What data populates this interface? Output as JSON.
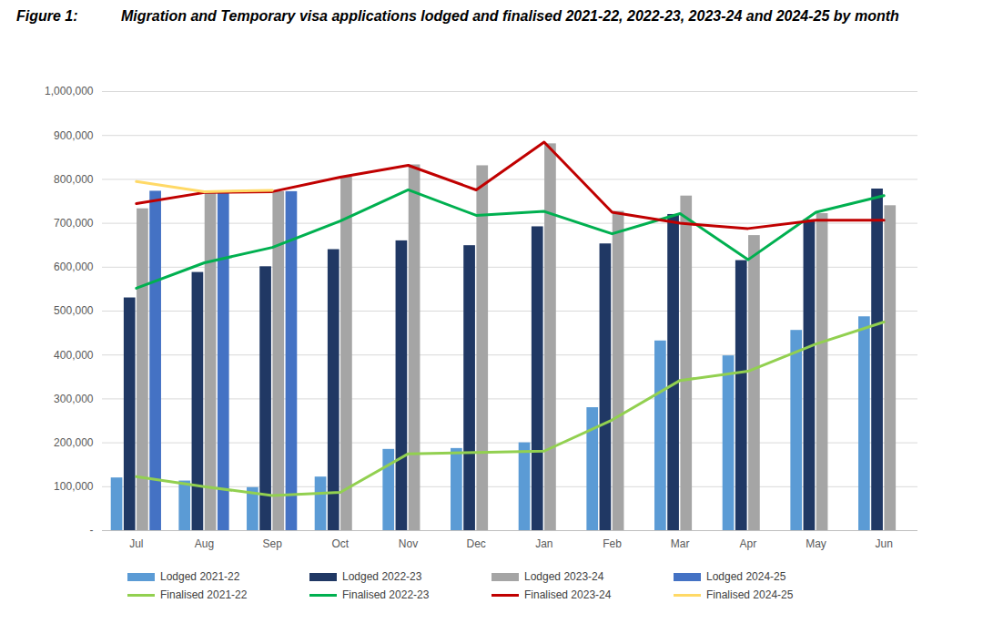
{
  "chart_data": {
    "type": "bar",
    "title": "Figure 1: Migration and Temporary visa applications lodged and finalised 2021-22, 2022-23, 2023-24 and 2024-25 by month",
    "categories": [
      "Jul",
      "Aug",
      "Sep",
      "Oct",
      "Nov",
      "Dec",
      "Jan",
      "Feb",
      "Mar",
      "Apr",
      "May",
      "Jun"
    ],
    "ylim": [
      0,
      1000000
    ],
    "yticks": [
      {
        "value": 0,
        "label": "-"
      },
      {
        "value": 100000,
        "label": "100,000"
      },
      {
        "value": 200000,
        "label": "200,000"
      },
      {
        "value": 300000,
        "label": "300,000"
      },
      {
        "value": 400000,
        "label": "400,000"
      },
      {
        "value": 500000,
        "label": "500,000"
      },
      {
        "value": 600000,
        "label": "600,000"
      },
      {
        "value": 700000,
        "label": "700,000"
      },
      {
        "value": 800000,
        "label": "800,000"
      },
      {
        "value": 900000,
        "label": "900,000"
      },
      {
        "value": 1000000,
        "label": "1,000,000"
      }
    ],
    "grid": true,
    "legend": "bottom",
    "series": [
      {
        "name": "Lodged 2021-22",
        "type": "bar",
        "color": "#5b9bd5",
        "values": [
          120000,
          113000,
          98000,
          122000,
          185000,
          187000,
          200000,
          280000,
          432000,
          398000,
          456000,
          487000
        ]
      },
      {
        "name": "Lodged 2022-23",
        "type": "bar",
        "color": "#203864",
        "values": [
          530000,
          588000,
          601000,
          640000,
          660000,
          649000,
          692000,
          653000,
          720000,
          615000,
          708000,
          778000
        ]
      },
      {
        "name": "Lodged 2023-24",
        "type": "bar",
        "color": "#a5a5a5",
        "values": [
          733000,
          770000,
          772000,
          805000,
          833000,
          831000,
          881000,
          727000,
          762000,
          672000,
          722000,
          740000
        ]
      },
      {
        "name": "Lodged 2024-25",
        "type": "bar",
        "color": "#4472c4",
        "values": [
          773000,
          772000,
          772000,
          null,
          null,
          null,
          null,
          null,
          null,
          null,
          null,
          null
        ]
      },
      {
        "name": "Finalised 2021-22",
        "type": "line",
        "color": "#92d050",
        "values": [
          123000,
          100000,
          80000,
          87000,
          175000,
          178000,
          181000,
          252000,
          342000,
          363000,
          425000,
          475000
        ]
      },
      {
        "name": "Finalised 2022-23",
        "type": "line",
        "color": "#00b050",
        "values": [
          552000,
          610000,
          645000,
          705000,
          776000,
          718000,
          727000,
          676000,
          722000,
          617000,
          725000,
          763000
        ]
      },
      {
        "name": "Finalised 2023-24",
        "type": "line",
        "color": "#c00000",
        "values": [
          745000,
          770000,
          772000,
          805000,
          832000,
          776000,
          885000,
          725000,
          700000,
          688000,
          707000,
          707000
        ]
      },
      {
        "name": "Finalised 2024-25",
        "type": "line",
        "color": "#ffd966",
        "values": [
          795000,
          772000,
          775000,
          null,
          null,
          null,
          null,
          null,
          null,
          null,
          null,
          null
        ]
      }
    ]
  }
}
